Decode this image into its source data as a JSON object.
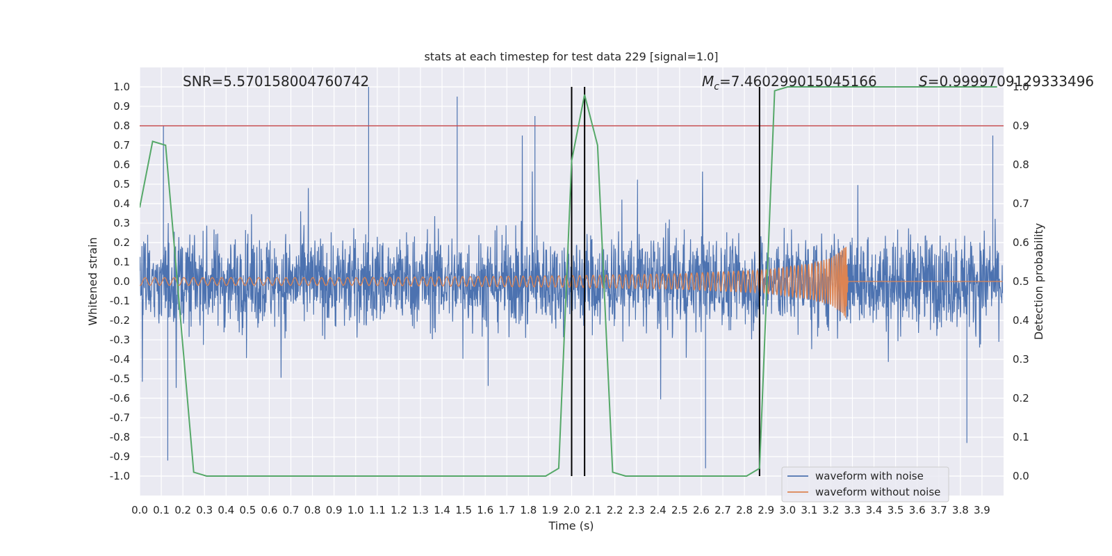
{
  "chart_data": {
    "type": "line",
    "title": "stats at each timestep for test data 229 [signal=1.0]",
    "xlabel": "Time (s)",
    "ylabel": "Whitened strain",
    "ylabel_right": "Detection probability",
    "xlim": [
      0.0,
      4.0
    ],
    "ylim": [
      -1.1,
      1.1
    ],
    "ylim_right": [
      -0.05,
      1.05
    ],
    "x_ticks": [
      0.0,
      0.1,
      0.2,
      0.3,
      0.4,
      0.5,
      0.6,
      0.7,
      0.8,
      0.9,
      1.0,
      1.1,
      1.2,
      1.3,
      1.4,
      1.5,
      1.6,
      1.7,
      1.8,
      1.9,
      2.0,
      2.1,
      2.2,
      2.3,
      2.4,
      2.5,
      2.6,
      2.7,
      2.8,
      2.9,
      3.0,
      3.1,
      3.2,
      3.3,
      3.4,
      3.5,
      3.6,
      3.7,
      3.8,
      3.9
    ],
    "y_ticks": [
      -1.0,
      -0.9,
      -0.8,
      -0.7,
      -0.6,
      -0.5,
      -0.4,
      -0.3,
      -0.2,
      -0.1,
      0.0,
      0.1,
      0.2,
      0.3,
      0.4,
      0.5,
      0.6,
      0.7,
      0.8,
      0.9,
      1.0
    ],
    "y_ticks_right": [
      0.0,
      0.1,
      0.2,
      0.3,
      0.4,
      0.5,
      0.6,
      0.7,
      0.8,
      0.9,
      1.0
    ],
    "annotations": {
      "snr": "SNR=5.570158004760742",
      "mc_symbol": "M",
      "mc_sub": "c",
      "mc_value": "=7.460299015045166",
      "s_symbol": "S",
      "s_value": "=0.9999709129333496"
    },
    "threshold": {
      "axis": "right",
      "value": 0.9,
      "color": "#c44e52"
    },
    "vertical_lines": [
      2.0,
      2.06,
      2.87
    ],
    "colors": {
      "background": "#eaeaf2",
      "grid": "#ffffff",
      "noisy": "#4c72b0",
      "clean": "#dd8452",
      "probability": "#55a868",
      "vlines": "#000000"
    },
    "series": [
      {
        "name": "waveform with noise",
        "axis": "left",
        "style": "dense noisy strain, amplitude ~0.2-0.4 rms",
        "spike_peaks": [
          [
            0.11,
            0.8
          ],
          [
            0.13,
            -0.92
          ],
          [
            1.06,
            1.0
          ],
          [
            1.47,
            0.95
          ],
          [
            1.83,
            0.85
          ],
          [
            2.62,
            -0.96
          ],
          [
            3.83,
            -0.83
          ],
          [
            3.95,
            0.75
          ]
        ]
      },
      {
        "name": "waveform without noise",
        "axis": "left",
        "style": "chirp ending at ~3.27 s",
        "envelope": [
          [
            0.0,
            0.02
          ],
          [
            1.0,
            0.02
          ],
          [
            2.0,
            0.03
          ],
          [
            2.5,
            0.04
          ],
          [
            2.9,
            0.06
          ],
          [
            3.1,
            0.09
          ],
          [
            3.2,
            0.12
          ],
          [
            3.25,
            0.16
          ],
          [
            3.27,
            0.19
          ],
          [
            3.28,
            0.0
          ]
        ]
      },
      {
        "name": "detection probability",
        "axis": "right",
        "x": [
          0.0,
          0.06,
          0.12,
          0.25,
          0.31,
          1.88,
          1.94,
          2.0,
          2.06,
          2.12,
          2.19,
          2.25,
          2.81,
          2.87,
          2.94,
          3.0,
          3.97
        ],
        "values": [
          0.69,
          0.86,
          0.85,
          0.01,
          0.0,
          0.0,
          0.02,
          0.81,
          0.98,
          0.85,
          0.01,
          0.0,
          0.0,
          0.02,
          0.99,
          1.0,
          1.0
        ]
      }
    ],
    "legend": {
      "position": "lower-right",
      "entries": [
        "waveform with noise",
        "waveform without noise"
      ]
    }
  }
}
